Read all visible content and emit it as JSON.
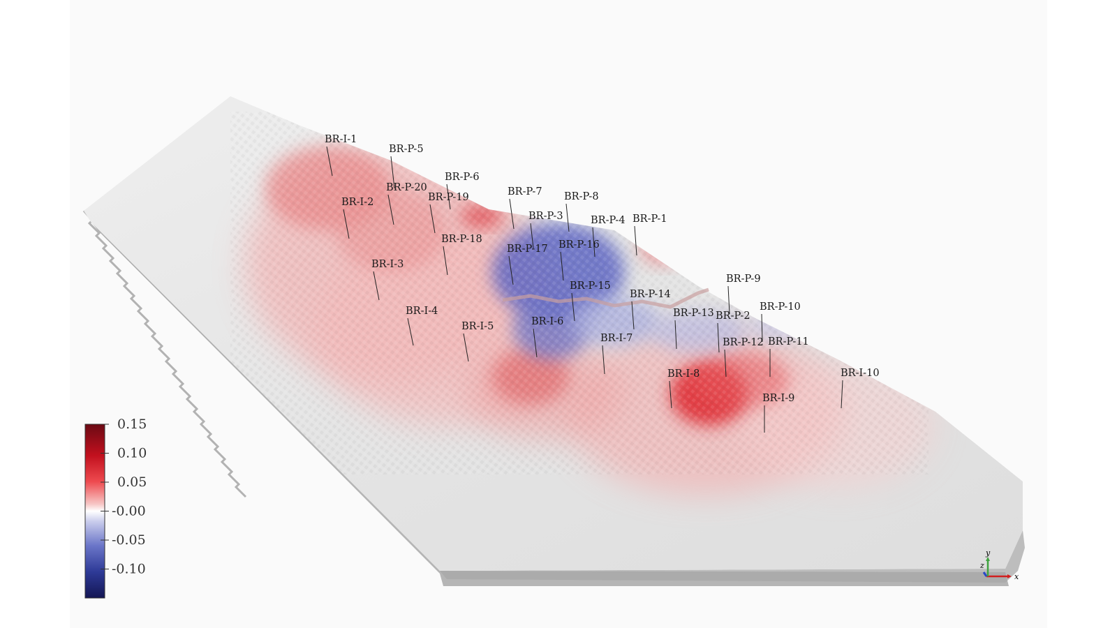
{
  "scene": {
    "type": "3d-reservoir-field-view",
    "field_quantity_range": [
      -0.15,
      0.15
    ],
    "colormap": "blue-white-red (diverging)"
  },
  "colorbar": {
    "ticks": [
      "0.15",
      "0.10",
      "0.05",
      "-0.00",
      "-0.05",
      "-0.10"
    ],
    "colors": {
      "max": "#6b0a14",
      "high": "#e8222d",
      "mid": "#ffffff",
      "low": "#4b5bb8",
      "min": "#141654"
    }
  },
  "wells": [
    {
      "label": "BR-I-1"
    },
    {
      "label": "BR-P-5"
    },
    {
      "label": "BR-P-6"
    },
    {
      "label": "BR-P-20"
    },
    {
      "label": "BR-P-19"
    },
    {
      "label": "BR-I-2"
    },
    {
      "label": "BR-P-7"
    },
    {
      "label": "BR-P-8"
    },
    {
      "label": "BR-P-3"
    },
    {
      "label": "BR-P-4"
    },
    {
      "label": "BR-P-1"
    },
    {
      "label": "BR-P-18"
    },
    {
      "label": "BR-P-17"
    },
    {
      "label": "BR-P-16"
    },
    {
      "label": "BR-I-3"
    },
    {
      "label": "BR-P-15"
    },
    {
      "label": "BR-P-14"
    },
    {
      "label": "BR-P-9"
    },
    {
      "label": "BR-I-4"
    },
    {
      "label": "BR-P-10"
    },
    {
      "label": "BR-P-13"
    },
    {
      "label": "BR-P-2"
    },
    {
      "label": "BR-I-5"
    },
    {
      "label": "BR-I-6"
    },
    {
      "label": "BR-I-7"
    },
    {
      "label": "BR-P-12"
    },
    {
      "label": "BR-P-11"
    },
    {
      "label": "BR-I-8"
    },
    {
      "label": "BR-I-10"
    },
    {
      "label": "BR-I-9"
    }
  ],
  "axes_widget": {
    "x_label": "x",
    "y_label": "y",
    "z_label": "z",
    "x_color": "#d21f1f",
    "y_color": "#3fa33f",
    "z_color": "#2848c8"
  }
}
